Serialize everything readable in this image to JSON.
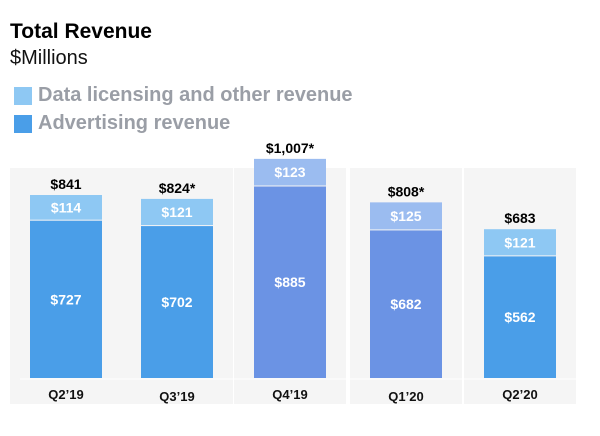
{
  "header": {
    "title": "Total Revenue",
    "subtitle": "$Millions"
  },
  "legend": [
    {
      "label": "Data licensing and other revenue",
      "color": "#8ec8f3"
    },
    {
      "label": "Advertising revenue",
      "color": "#4a9ee8"
    }
  ],
  "chart_data": {
    "type": "bar",
    "stacked": true,
    "title": "Total Revenue",
    "ylabel": "$Millions",
    "categories": [
      "Q2’19",
      "Q3’19",
      "Q4’19",
      "Q1’20",
      "Q2’20"
    ],
    "series": [
      {
        "name": "Advertising revenue",
        "values": [
          727,
          702,
          885,
          682,
          562
        ]
      },
      {
        "name": "Data licensing and other revenue",
        "values": [
          114,
          121,
          123,
          125,
          121
        ]
      }
    ],
    "totals": [
      "$841",
      "$824*",
      "$1,007*",
      "$808*",
      "$683"
    ],
    "segment_labels": {
      "Advertising revenue": [
        "$727",
        "$702",
        "$885",
        "$682",
        "$562"
      ],
      "Data licensing and other revenue": [
        "$114",
        "$121",
        "$123",
        "$125",
        "$121"
      ]
    },
    "colors": {
      "advertising": [
        "#4a9ee8",
        "#4a9ee8",
        "#6b93e4",
        "#6b93e4",
        "#4a9ee8"
      ],
      "licensing": [
        "#8ec8f3",
        "#8ec8f3",
        "#9bbcf0",
        "#9bbcf0",
        "#8ec8f3"
      ]
    },
    "ylim": [
      0,
      1050
    ]
  }
}
